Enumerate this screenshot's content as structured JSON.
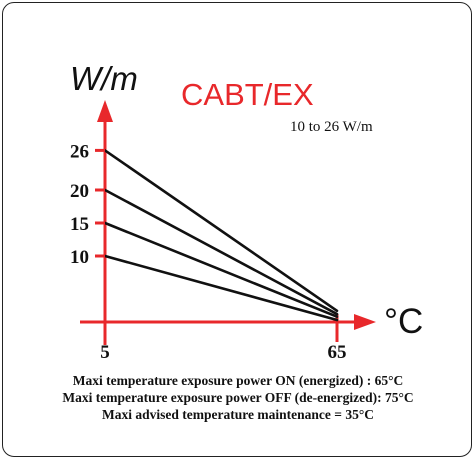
{
  "chart_data": {
    "type": "line",
    "title": "CABT/EX",
    "subtitle": "10 to 26 W/m",
    "ylabel": "W/m",
    "xlabel": "°C",
    "x_ticks": [
      "5",
      "65"
    ],
    "y_ticks": [
      "10",
      "15",
      "20",
      "26"
    ],
    "series": [
      {
        "x": [
          5,
          65
        ],
        "values": [
          26,
          1.7
        ]
      },
      {
        "x": [
          5,
          65
        ],
        "values": [
          20,
          1.2
        ]
      },
      {
        "x": [
          5,
          65
        ],
        "values": [
          15,
          0.8
        ]
      },
      {
        "x": [
          5,
          65
        ],
        "values": [
          10,
          0.3
        ]
      }
    ],
    "colors": {
      "axis": "#e8282b",
      "title": "#e8282b",
      "lines": "#111111"
    },
    "grid": false
  },
  "notes": [
    "Maxi temperature exposure power ON (energized) : 65°C",
    "Maxi temperature exposure power OFF (de-energized): 75°C",
    "Maxi advised temperature maintenance  = 35°C"
  ]
}
